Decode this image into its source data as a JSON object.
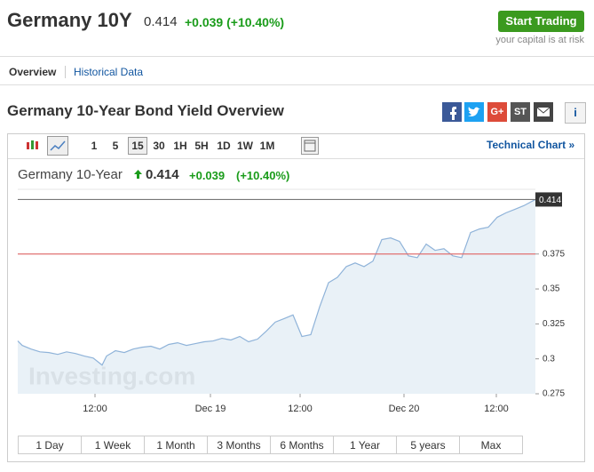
{
  "header": {
    "title": "Germany 10Y",
    "price": "0.414",
    "change": "+0.039 (+10.40%)",
    "button": "Start Trading",
    "disclaimer": "your capital is at risk"
  },
  "tabs": [
    "Overview",
    "Historical Data"
  ],
  "section": {
    "title": "Germany 10-Year Bond Yield Overview",
    "share": [
      "G+",
      "ST"
    ],
    "info": "i"
  },
  "toolbar": {
    "intervals": [
      "1",
      "5",
      "15",
      "30",
      "1H",
      "5H",
      "1D",
      "1W",
      "1M"
    ],
    "link": "Technical Chart »"
  },
  "chart_legend": {
    "name": "Germany 10-Year",
    "price": "0.414",
    "change": "+0.039",
    "percent": "(+10.40%)"
  },
  "chart_data": {
    "type": "area",
    "color": "#8fb3d9",
    "fill": "#e4edf5",
    "x": [
      0,
      1,
      3,
      5,
      7,
      9,
      11,
      13,
      15,
      17,
      19,
      20,
      22,
      24,
      26,
      28,
      30,
      32,
      34,
      36,
      38,
      40,
      42,
      44,
      46,
      48,
      50,
      52,
      54,
      56,
      58,
      60,
      62,
      64,
      66,
      68,
      70,
      72,
      74,
      76,
      78,
      80,
      82,
      84,
      86,
      88,
      90,
      92,
      94,
      96,
      98,
      100,
      102,
      104,
      106,
      108,
      110,
      112,
      114,
      116.6
    ],
    "values": [
      0.3128,
      0.3096,
      0.307,
      0.305,
      0.3045,
      0.3032,
      0.305,
      0.3038,
      0.302,
      0.3006,
      0.2955,
      0.302,
      0.3058,
      0.3045,
      0.307,
      0.3083,
      0.309,
      0.307,
      0.3103,
      0.3115,
      0.3096,
      0.3109,
      0.3122,
      0.3128,
      0.3147,
      0.3135,
      0.316,
      0.3122,
      0.3141,
      0.3199,
      0.3263,
      0.3288,
      0.3314,
      0.316,
      0.3173,
      0.3372,
      0.3545,
      0.3583,
      0.366,
      0.3686,
      0.366,
      0.3699,
      0.3853,
      0.3865,
      0.384,
      0.3737,
      0.3724,
      0.3821,
      0.3776,
      0.3788,
      0.3737,
      0.3724,
      0.3904,
      0.3929,
      0.3942,
      0.4013,
      0.4045,
      0.407,
      0.4096,
      0.414
    ],
    "xlim": [
      0,
      116.6
    ],
    "xticks": [
      {
        "value": 17.4,
        "label": "12:00"
      },
      {
        "value": 43.4,
        "label": "Dec 19"
      },
      {
        "value": 63.6,
        "label": "12:00"
      },
      {
        "value": 87,
        "label": "Dec 20"
      },
      {
        "value": 107.8,
        "label": "12:00"
      }
    ],
    "ylim": [
      0.275,
      0.42
    ],
    "yticks": [
      0.275,
      0.3,
      0.325,
      0.35,
      0.375
    ],
    "last_value": 0.414,
    "reference_line": 0.375,
    "reference_color": "#e07070",
    "watermark": "Investing.com"
  },
  "ranges": [
    "1 Day",
    "1 Week",
    "1 Month",
    "3 Months",
    "6 Months",
    "1 Year",
    "5 years",
    "Max"
  ]
}
